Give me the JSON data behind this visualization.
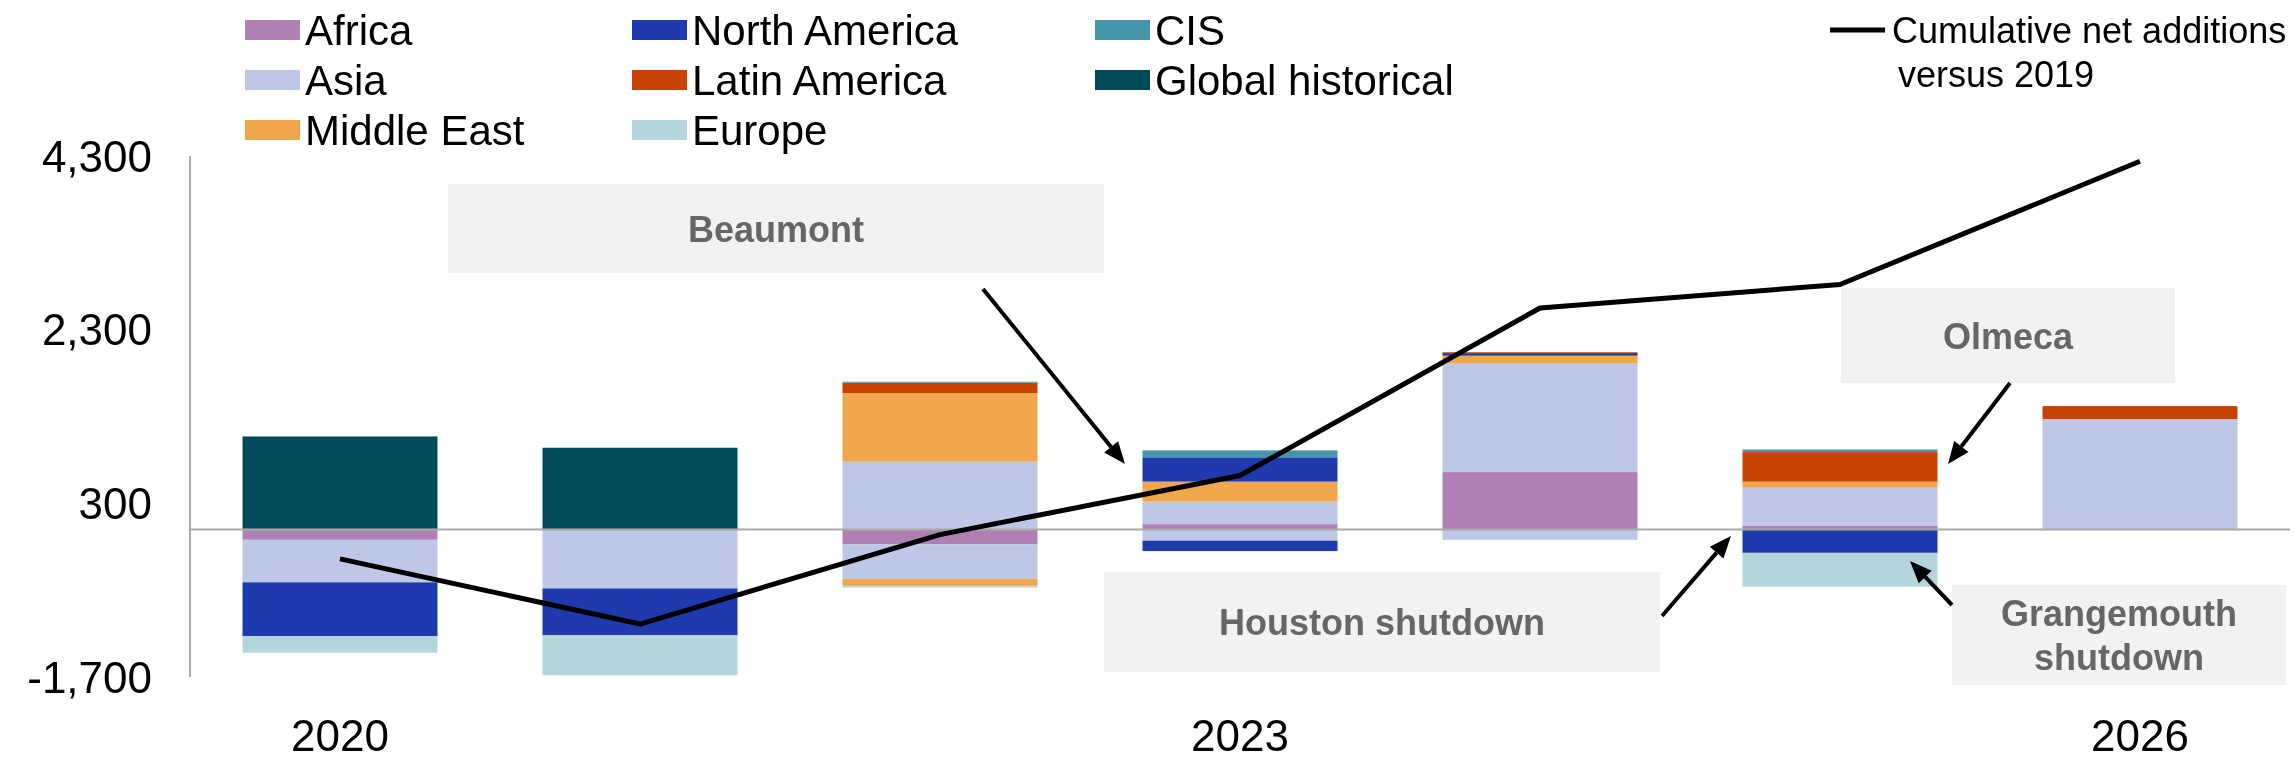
{
  "chart_data": {
    "type": "bar",
    "stacked": true,
    "categories": [
      "2020",
      null,
      null,
      "2023",
      null,
      null,
      "2026"
    ],
    "ylim": [
      -1700,
      4300
    ],
    "yticks": [
      {
        "value": 4300,
        "label": "4,300"
      },
      {
        "value": 2300,
        "label": "2,300"
      },
      {
        "value": 300,
        "label": "300"
      },
      {
        "value": -1700,
        "label": "-1,700"
      }
    ],
    "grid": false,
    "legend": "top",
    "series": [
      {
        "name": "Africa",
        "color": "#b07fb5",
        "values": [
          -120,
          null,
          -170,
          60,
          660,
          40,
          null
        ]
      },
      {
        "name": "Asia",
        "color": "#bec7e6",
        "values": [
          null,
          null,
          780,
          260,
          1250,
          440,
          1270
        ]
      },
      {
        "color": "#bec7e6",
        "values": [
          -490,
          -680,
          -400,
          -130,
          -120,
          null,
          null
        ]
      },
      {
        "name": "Middle East",
        "color": "#f0a64b",
        "values": [
          null,
          null,
          790,
          230,
          90,
          70,
          null
        ]
      },
      {
        "color": "#f0a64b",
        "values": [
          null,
          null,
          -80,
          null,
          null,
          null,
          null
        ]
      },
      {
        "name": "North America",
        "color": "#1f3aad",
        "values": [
          null,
          null,
          null,
          280,
          30,
          null,
          null
        ]
      },
      {
        "color": "#1f3aad",
        "values": [
          -620,
          -540,
          null,
          -120,
          null,
          -270,
          null
        ]
      },
      {
        "name": "Latin America",
        "color": "#c84200",
        "values": [
          null,
          null,
          120,
          null,
          10,
          340,
          150
        ]
      },
      {
        "name": "Europe",
        "color": "#b5d5dc",
        "values": [
          -190,
          -460,
          -20,
          null,
          null,
          -390,
          null
        ]
      },
      {
        "name": "CIS",
        "color": "#4596ab",
        "values": [
          null,
          null,
          10,
          80,
          null,
          30,
          null
        ]
      },
      {
        "name": "Global historical",
        "color": "#004a59",
        "values": [
          1070,
          940,
          null,
          null,
          null,
          null,
          null
        ]
      },
      {
        "name": "Cumulative net additions versus 2019",
        "type": "line",
        "color": "#000000",
        "values": [
          -340,
          -1090,
          -60,
          620,
          2550,
          2820,
          4240
        ]
      }
    ],
    "annotations": [
      "Beaumont",
      "Houston shutdown",
      "Olmeca",
      "Grangemouth shutdown"
    ]
  }
}
